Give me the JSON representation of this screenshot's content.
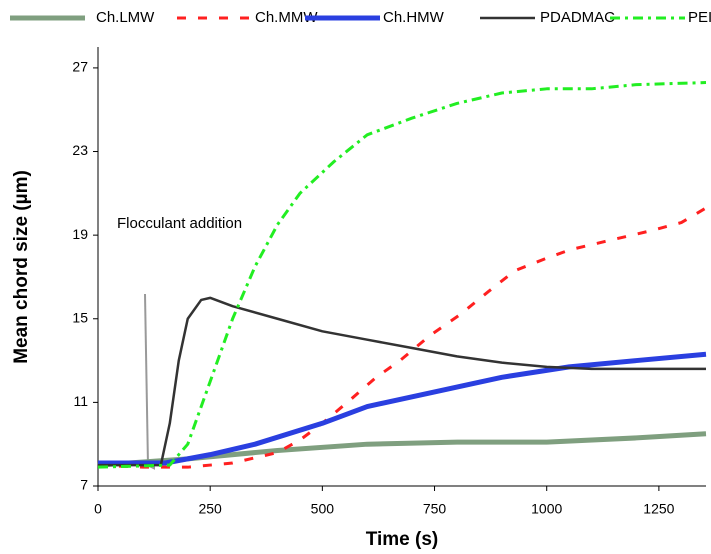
{
  "chart_data": {
    "type": "line",
    "annotation": "Flocculant addition",
    "x_label": "Time (s)",
    "y_label": "Mean chord size (µm)",
    "xlim": [
      0,
      1355
    ],
    "ylim": [
      7,
      28
    ],
    "xticks": [
      0,
      250,
      500,
      750,
      1000,
      1250
    ],
    "yticks": [
      7,
      11,
      15,
      19,
      23,
      27
    ],
    "grid": false,
    "legend": "top",
    "series": [
      {
        "name": "Ch.LMW",
        "color": "#7f9f7f",
        "style": "thick",
        "x": [
          0,
          200,
          400,
          600,
          800,
          1000,
          1200,
          1355
        ],
        "values": [
          8.0,
          8.3,
          8.7,
          9.0,
          9.1,
          9.1,
          9.3,
          9.5
        ]
      },
      {
        "name": "Ch.MMW",
        "color": "#ff2020",
        "style": "dashed",
        "x": [
          0,
          100,
          200,
          300,
          400,
          450,
          500,
          561,
          620,
          673,
          740,
          807,
          870,
          929,
          1000,
          1052,
          1150,
          1230,
          1300,
          1355
        ],
        "values": [
          8.0,
          7.9,
          7.9,
          8.1,
          8.6,
          9.2,
          10.0,
          11.1,
          12.2,
          13.0,
          14.2,
          15.2,
          16.3,
          17.3,
          17.9,
          18.3,
          18.8,
          19.2,
          19.6,
          20.3
        ]
      },
      {
        "name": "Ch.HMW",
        "color": "#2a3fe0",
        "style": "thick",
        "x": [
          0,
          150,
          250,
          350,
          500,
          600,
          750,
          900,
          1050,
          1200,
          1355
        ],
        "values": [
          8.1,
          8.1,
          8.5,
          9.0,
          10.0,
          10.8,
          11.5,
          12.2,
          12.7,
          13.0,
          13.3
        ]
      },
      {
        "name": "PDADMAC",
        "color": "#333333",
        "style": "solid",
        "x": [
          0,
          140,
          160,
          180,
          200,
          230,
          250,
          300,
          400,
          500,
          600,
          700,
          800,
          900,
          1000,
          1100,
          1355
        ],
        "values": [
          8.0,
          8.0,
          10.0,
          13.0,
          15.0,
          15.9,
          16.0,
          15.6,
          15.0,
          14.4,
          14.0,
          13.6,
          13.2,
          12.9,
          12.7,
          12.6,
          12.6
        ]
      },
      {
        "name": "PEI",
        "color": "#22ee22",
        "style": "dashdot",
        "x": [
          0,
          160,
          200,
          250,
          300,
          350,
          400,
          450,
          525,
          600,
          700,
          800,
          900,
          1000,
          1100,
          1200,
          1355
        ],
        "values": [
          7.9,
          8.0,
          9.0,
          12.0,
          15.0,
          17.5,
          19.5,
          21.0,
          22.5,
          23.8,
          24.6,
          25.3,
          25.8,
          26.0,
          26.0,
          26.2,
          26.3
        ]
      }
    ]
  }
}
